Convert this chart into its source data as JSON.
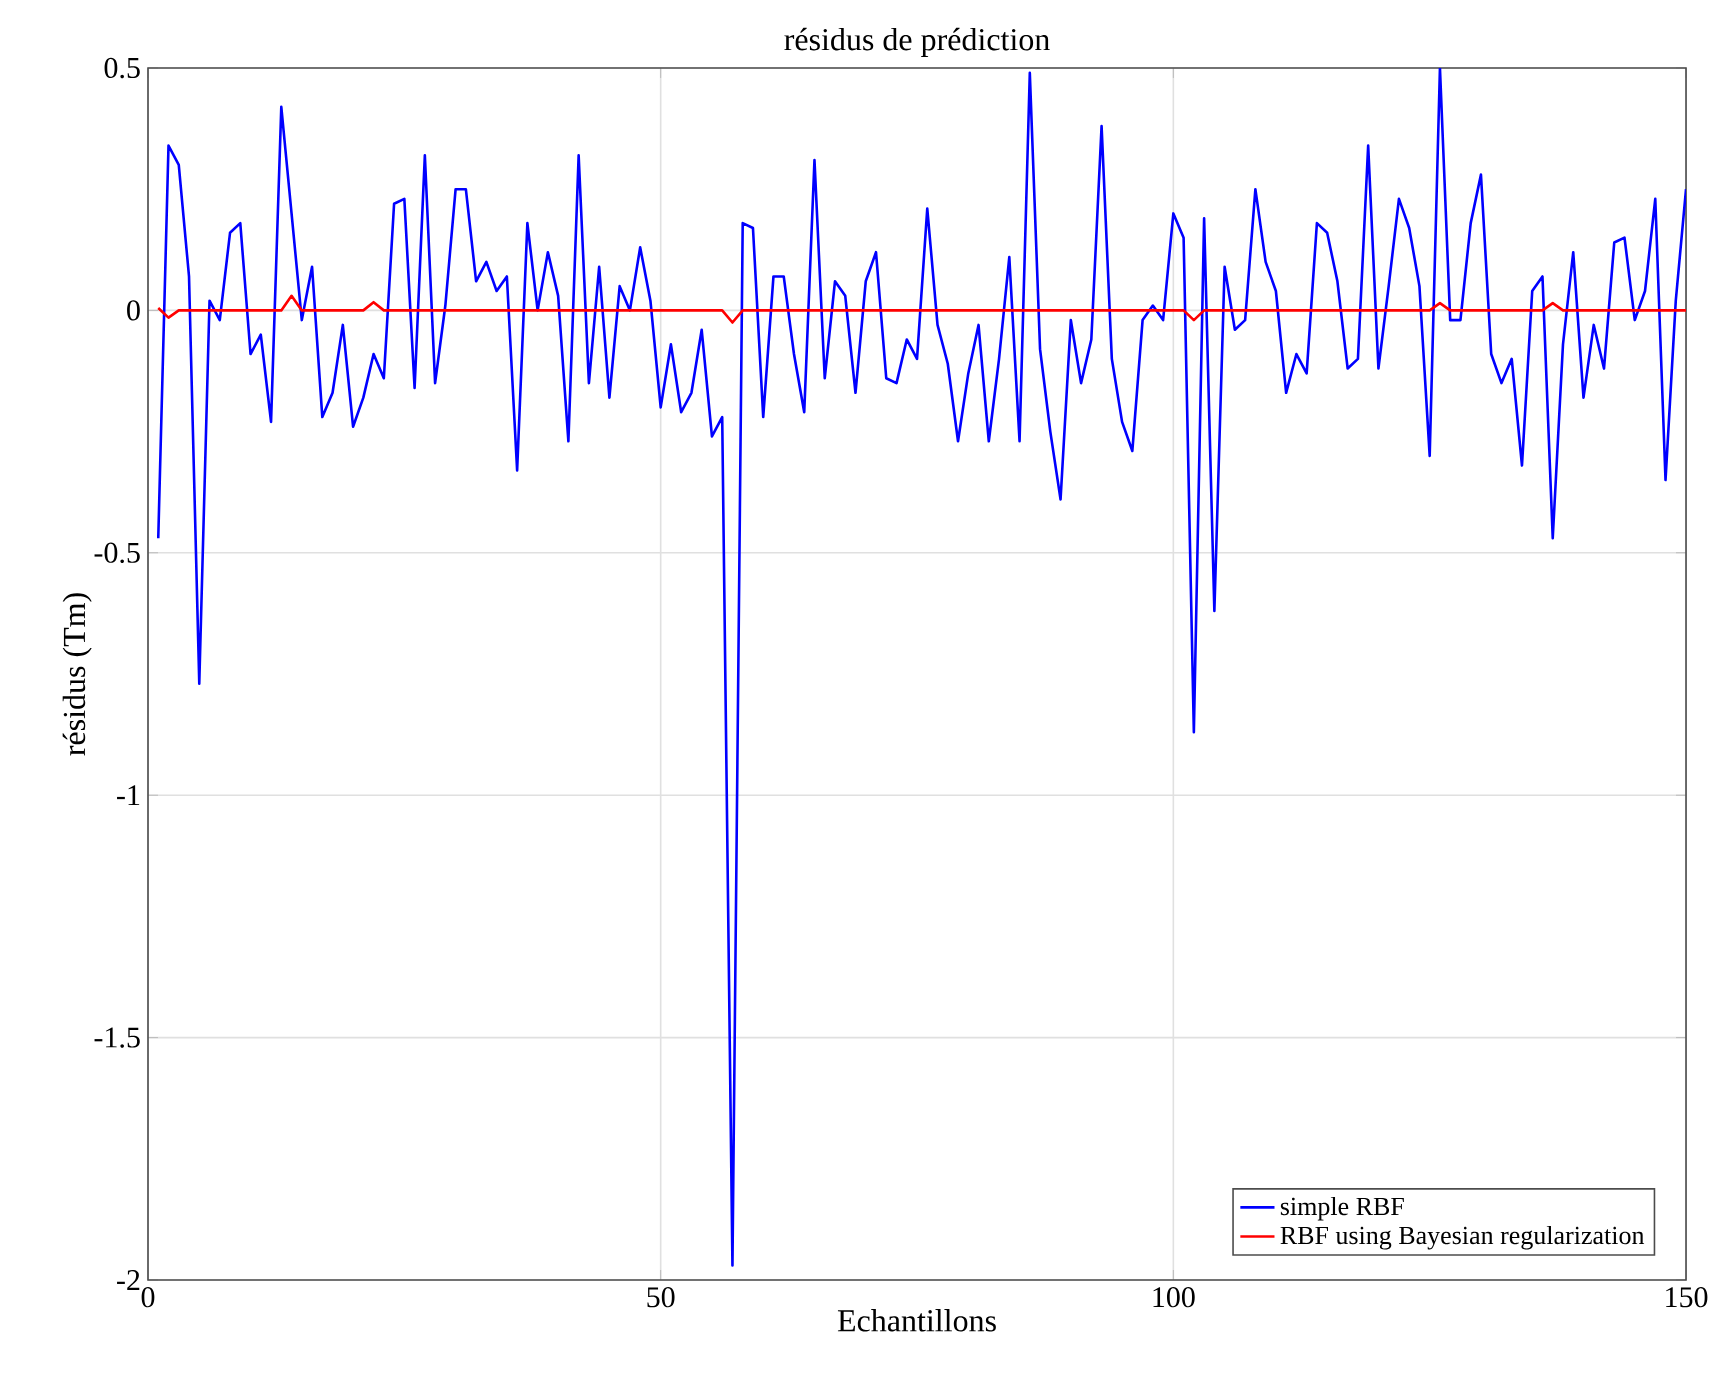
{
  "chart_data": {
    "type": "line",
    "title": "résidus de prédiction",
    "xlabel": "Echantillons",
    "ylabel": "résidus (Tm)",
    "xlim": [
      0,
      150
    ],
    "xticks": [
      0,
      50,
      100,
      150
    ],
    "ylim": [
      -2,
      0.5
    ],
    "yticks": [
      -2,
      -1.5,
      -1,
      -0.5,
      0,
      0.5
    ],
    "grid": true,
    "legend": "bottom right",
    "marker": "none",
    "line_style": "solid",
    "series": [
      {
        "name": "simple RBF",
        "color": "#0000ff",
        "x": [
          1,
          2,
          3,
          4,
          5,
          6,
          7,
          8,
          9,
          10,
          11,
          12,
          13,
          14,
          15,
          16,
          17,
          18,
          19,
          20,
          21,
          22,
          23,
          24,
          25,
          26,
          27,
          28,
          29,
          30,
          31,
          32,
          33,
          34,
          35,
          36,
          37,
          38,
          39,
          40,
          41,
          42,
          43,
          44,
          45,
          46,
          47,
          48,
          49,
          50,
          51,
          52,
          53,
          54,
          55,
          56,
          57,
          58,
          59,
          60,
          61,
          62,
          63,
          64,
          65,
          66,
          67,
          68,
          69,
          70,
          71,
          72,
          73,
          74,
          75,
          76,
          77,
          78,
          79,
          80,
          81,
          82,
          83,
          84,
          85,
          86,
          87,
          88,
          89,
          90,
          91,
          92,
          93,
          94,
          95,
          96,
          97,
          98,
          99,
          100,
          101,
          102,
          103,
          104,
          105,
          106,
          107,
          108,
          109,
          110,
          111,
          112,
          113,
          114,
          115,
          116,
          117,
          118,
          119,
          120,
          121,
          122,
          123,
          124,
          125,
          126,
          127,
          128,
          129,
          130,
          131,
          132,
          133,
          134,
          135,
          136,
          137,
          138,
          139,
          140,
          141,
          142,
          143,
          144,
          145,
          146,
          147,
          148,
          149,
          150
        ],
        "values": [
          -0.47,
          0.34,
          0.3,
          0.07,
          -0.77,
          0.02,
          -0.02,
          0.16,
          0.18,
          -0.09,
          -0.05,
          -0.23,
          0.42,
          0.2,
          -0.02,
          0.09,
          -0.22,
          -0.17,
          -0.03,
          -0.24,
          -0.18,
          -0.09,
          -0.14,
          0.22,
          0.23,
          -0.16,
          0.32,
          -0.15,
          0.01,
          0.25,
          0.25,
          0.06,
          0.1,
          0.04,
          0.07,
          -0.33,
          0.18,
          0.0,
          0.12,
          0.03,
          -0.27,
          0.32,
          -0.15,
          0.09,
          -0.18,
          0.05,
          0.0,
          0.13,
          0.02,
          -0.2,
          -0.07,
          -0.21,
          -0.17,
          -0.04,
          -0.26,
          -0.22,
          -1.97,
          0.18,
          0.17,
          -0.22,
          0.07,
          0.07,
          -0.09,
          -0.21,
          0.31,
          -0.14,
          0.06,
          0.03,
          -0.17,
          0.06,
          0.12,
          -0.14,
          -0.15,
          -0.06,
          -0.1,
          0.21,
          -0.03,
          -0.11,
          -0.27,
          -0.13,
          -0.03,
          -0.27,
          -0.1,
          0.11,
          -0.27,
          0.49,
          -0.08,
          -0.25,
          -0.39,
          -0.02,
          -0.15,
          -0.06,
          0.38,
          -0.1,
          -0.23,
          -0.29,
          -0.02,
          0.01,
          -0.02,
          0.2,
          0.15,
          -0.87,
          0.19,
          -0.62,
          0.09,
          -0.04,
          -0.02,
          0.25,
          0.1,
          0.04,
          -0.17,
          -0.09,
          -0.13,
          0.18,
          0.16,
          0.06,
          -0.12,
          -0.1,
          0.34,
          -0.12,
          0.05,
          0.23,
          0.17,
          0.05,
          -0.3,
          0.5,
          -0.02,
          -0.02,
          0.18,
          0.28,
          -0.09,
          -0.15,
          -0.1,
          -0.32,
          0.04,
          0.07,
          -0.47,
          -0.07,
          0.12,
          -0.18,
          -0.03,
          -0.12,
          0.14,
          0.15,
          -0.02,
          0.04,
          0.23,
          -0.35,
          0.02,
          0.25
        ]
      },
      {
        "name": "RBF using Bayesian regularization",
        "color": "#ff0000",
        "x": [
          1,
          2,
          3,
          13,
          14,
          15,
          21,
          22,
          23,
          56,
          57,
          58,
          101,
          102,
          103,
          125,
          126,
          127,
          136,
          137,
          138,
          150
        ],
        "values": [
          0.005,
          -0.015,
          0,
          0,
          0.03,
          0,
          0,
          0.017,
          0,
          0,
          -0.025,
          0,
          0,
          -0.02,
          0,
          0,
          0.015,
          0,
          0,
          0.015,
          0,
          0
        ]
      }
    ]
  }
}
